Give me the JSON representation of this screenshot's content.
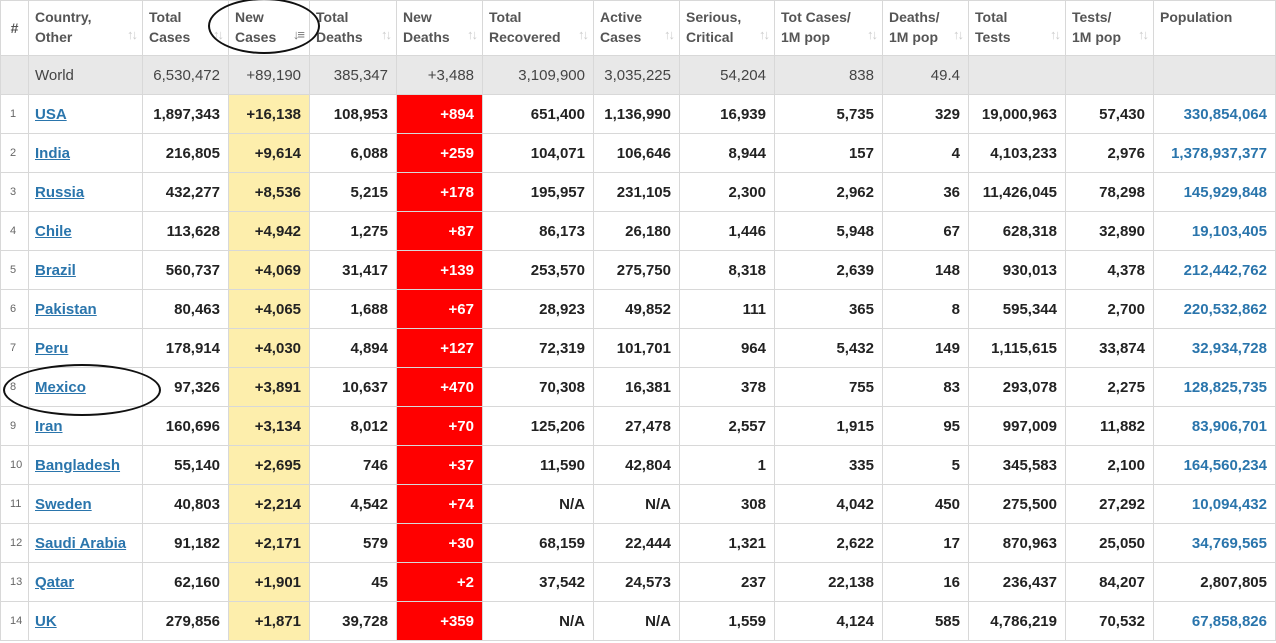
{
  "headers": [
    {
      "key": "num",
      "label": "#"
    },
    {
      "key": "country",
      "line1": "Country,",
      "line2": "Other"
    },
    {
      "key": "total_cases",
      "line1": "Total",
      "line2": "Cases"
    },
    {
      "key": "new_cases",
      "line1": "New",
      "line2": "Cases",
      "sort": "↓≡"
    },
    {
      "key": "total_deaths",
      "line1": "Total",
      "line2": "Deaths"
    },
    {
      "key": "new_deaths",
      "line1": "New",
      "line2": "Deaths"
    },
    {
      "key": "total_recovered",
      "line1": "Total",
      "line2": "Recovered"
    },
    {
      "key": "active_cases",
      "line1": "Active",
      "line2": "Cases"
    },
    {
      "key": "serious",
      "line1": "Serious,",
      "line2": "Critical"
    },
    {
      "key": "cases_per_m",
      "line1": "Tot Cases/",
      "line2": "1M pop"
    },
    {
      "key": "deaths_per_m",
      "line1": "Deaths/",
      "line2": "1M pop"
    },
    {
      "key": "total_tests",
      "line1": "Total",
      "line2": "Tests"
    },
    {
      "key": "tests_per_m",
      "line1": "Tests/",
      "line2": "1M pop"
    },
    {
      "key": "population",
      "line1": "Population",
      "line2": ""
    }
  ],
  "sort_icon": "↑↓",
  "world": {
    "country": "World",
    "total_cases": "6,530,472",
    "new_cases": "+89,190",
    "total_deaths": "385,347",
    "new_deaths": "+3,488",
    "total_recovered": "3,109,900",
    "active_cases": "3,035,225",
    "serious": "54,204",
    "cases_per_m": "838",
    "deaths_per_m": "49.4",
    "total_tests": "",
    "tests_per_m": "",
    "population": ""
  },
  "rows": [
    {
      "num": "1",
      "country": "USA",
      "total_cases": "1,897,343",
      "new_cases": "+16,138",
      "total_deaths": "108,953",
      "new_deaths": "+894",
      "total_recovered": "651,400",
      "active_cases": "1,136,990",
      "serious": "16,939",
      "cases_per_m": "5,735",
      "deaths_per_m": "329",
      "total_tests": "19,000,963",
      "tests_per_m": "57,430",
      "population": "330,854,064"
    },
    {
      "num": "2",
      "country": "India",
      "total_cases": "216,805",
      "new_cases": "+9,614",
      "total_deaths": "6,088",
      "new_deaths": "+259",
      "total_recovered": "104,071",
      "active_cases": "106,646",
      "serious": "8,944",
      "cases_per_m": "157",
      "deaths_per_m": "4",
      "total_tests": "4,103,233",
      "tests_per_m": "2,976",
      "population": "1,378,937,377"
    },
    {
      "num": "3",
      "country": "Russia",
      "total_cases": "432,277",
      "new_cases": "+8,536",
      "total_deaths": "5,215",
      "new_deaths": "+178",
      "total_recovered": "195,957",
      "active_cases": "231,105",
      "serious": "2,300",
      "cases_per_m": "2,962",
      "deaths_per_m": "36",
      "total_tests": "11,426,045",
      "tests_per_m": "78,298",
      "population": "145,929,848"
    },
    {
      "num": "4",
      "country": "Chile",
      "total_cases": "113,628",
      "new_cases": "+4,942",
      "total_deaths": "1,275",
      "new_deaths": "+87",
      "total_recovered": "86,173",
      "active_cases": "26,180",
      "serious": "1,446",
      "cases_per_m": "5,948",
      "deaths_per_m": "67",
      "total_tests": "628,318",
      "tests_per_m": "32,890",
      "population": "19,103,405"
    },
    {
      "num": "5",
      "country": "Brazil",
      "total_cases": "560,737",
      "new_cases": "+4,069",
      "total_deaths": "31,417",
      "new_deaths": "+139",
      "total_recovered": "253,570",
      "active_cases": "275,750",
      "serious": "8,318",
      "cases_per_m": "2,639",
      "deaths_per_m": "148",
      "total_tests": "930,013",
      "tests_per_m": "4,378",
      "population": "212,442,762"
    },
    {
      "num": "6",
      "country": "Pakistan",
      "total_cases": "80,463",
      "new_cases": "+4,065",
      "total_deaths": "1,688",
      "new_deaths": "+67",
      "total_recovered": "28,923",
      "active_cases": "49,852",
      "serious": "111",
      "cases_per_m": "365",
      "deaths_per_m": "8",
      "total_tests": "595,344",
      "tests_per_m": "2,700",
      "population": "220,532,862"
    },
    {
      "num": "7",
      "country": "Peru",
      "total_cases": "178,914",
      "new_cases": "+4,030",
      "total_deaths": "4,894",
      "new_deaths": "+127",
      "total_recovered": "72,319",
      "active_cases": "101,701",
      "serious": "964",
      "cases_per_m": "5,432",
      "deaths_per_m": "149",
      "total_tests": "1,115,615",
      "tests_per_m": "33,874",
      "population": "32,934,728"
    },
    {
      "num": "8",
      "country": "Mexico",
      "total_cases": "97,326",
      "new_cases": "+3,891",
      "total_deaths": "10,637",
      "new_deaths": "+470",
      "total_recovered": "70,308",
      "active_cases": "16,381",
      "serious": "378",
      "cases_per_m": "755",
      "deaths_per_m": "83",
      "total_tests": "293,078",
      "tests_per_m": "2,275",
      "population": "128,825,735"
    },
    {
      "num": "9",
      "country": "Iran",
      "total_cases": "160,696",
      "new_cases": "+3,134",
      "total_deaths": "8,012",
      "new_deaths": "+70",
      "total_recovered": "125,206",
      "active_cases": "27,478",
      "serious": "2,557",
      "cases_per_m": "1,915",
      "deaths_per_m": "95",
      "total_tests": "997,009",
      "tests_per_m": "11,882",
      "population": "83,906,701"
    },
    {
      "num": "10",
      "country": "Bangladesh",
      "total_cases": "55,140",
      "new_cases": "+2,695",
      "total_deaths": "746",
      "new_deaths": "+37",
      "total_recovered": "11,590",
      "active_cases": "42,804",
      "serious": "1",
      "cases_per_m": "335",
      "deaths_per_m": "5",
      "total_tests": "345,583",
      "tests_per_m": "2,100",
      "population": "164,560,234"
    },
    {
      "num": "11",
      "country": "Sweden",
      "total_cases": "40,803",
      "new_cases": "+2,214",
      "total_deaths": "4,542",
      "new_deaths": "+74",
      "total_recovered": "N/A",
      "active_cases": "N/A",
      "serious": "308",
      "cases_per_m": "4,042",
      "deaths_per_m": "450",
      "total_tests": "275,500",
      "tests_per_m": "27,292",
      "population": "10,094,432"
    },
    {
      "num": "12",
      "country": "Saudi Arabia",
      "total_cases": "91,182",
      "new_cases": "+2,171",
      "total_deaths": "579",
      "new_deaths": "+30",
      "total_recovered": "68,159",
      "active_cases": "22,444",
      "serious": "1,321",
      "cases_per_m": "2,622",
      "deaths_per_m": "17",
      "total_tests": "870,963",
      "tests_per_m": "25,050",
      "population": "34,769,565"
    },
    {
      "num": "13",
      "country": "Qatar",
      "total_cases": "62,160",
      "new_cases": "+1,901",
      "total_deaths": "45",
      "new_deaths": "+2",
      "total_recovered": "37,542",
      "active_cases": "24,573",
      "serious": "237",
      "cases_per_m": "22,138",
      "deaths_per_m": "16",
      "total_tests": "236,437",
      "tests_per_m": "84,207",
      "population": "2,807,805",
      "population_plain": true
    },
    {
      "num": "14",
      "country": "UK",
      "total_cases": "279,856",
      "new_cases": "+1,871",
      "total_deaths": "39,728",
      "new_deaths": "+359",
      "total_recovered": "N/A",
      "active_cases": "N/A",
      "serious": "1,559",
      "cases_per_m": "4,124",
      "deaths_per_m": "585",
      "total_tests": "4,786,219",
      "tests_per_m": "70,532",
      "population": "67,858,826"
    }
  ]
}
